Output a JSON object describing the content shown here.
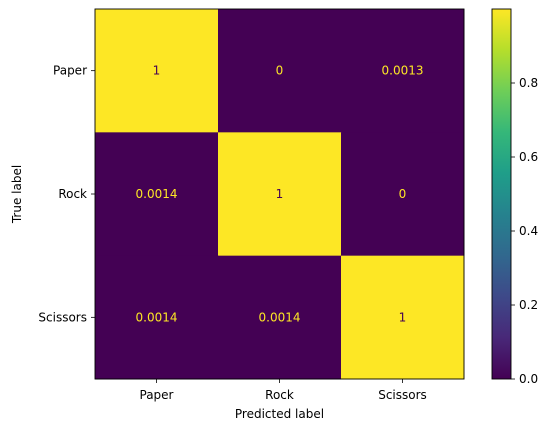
{
  "chart_data": {
    "type": "heatmap",
    "title": "",
    "xlabel": "Predicted label",
    "ylabel": "True label",
    "x_categories": [
      "Paper",
      "Rock",
      "Scissors"
    ],
    "y_categories": [
      "Paper",
      "Rock",
      "Scissors"
    ],
    "values": [
      [
        1,
        0,
        0.0013
      ],
      [
        0.0014,
        1,
        0
      ],
      [
        0.0014,
        0.0014,
        1
      ]
    ],
    "cell_labels": [
      [
        "1",
        "0",
        "0.0013"
      ],
      [
        "0.0014",
        "1",
        "0"
      ],
      [
        "0.0014",
        "0.0014",
        "1"
      ]
    ],
    "colormap": "viridis",
    "colorbar": {
      "vmin": 0,
      "vmax": 1,
      "ticks": [
        0.0,
        0.2,
        0.4,
        0.6,
        0.8
      ],
      "tick_labels": [
        "0.0",
        "0.2",
        "0.4",
        "0.6",
        "0.8"
      ]
    },
    "colors": {
      "low": "#440154",
      "high": "#fde725",
      "text_on_low": "#fde725",
      "text_on_high": "#440154"
    },
    "grid": false
  }
}
